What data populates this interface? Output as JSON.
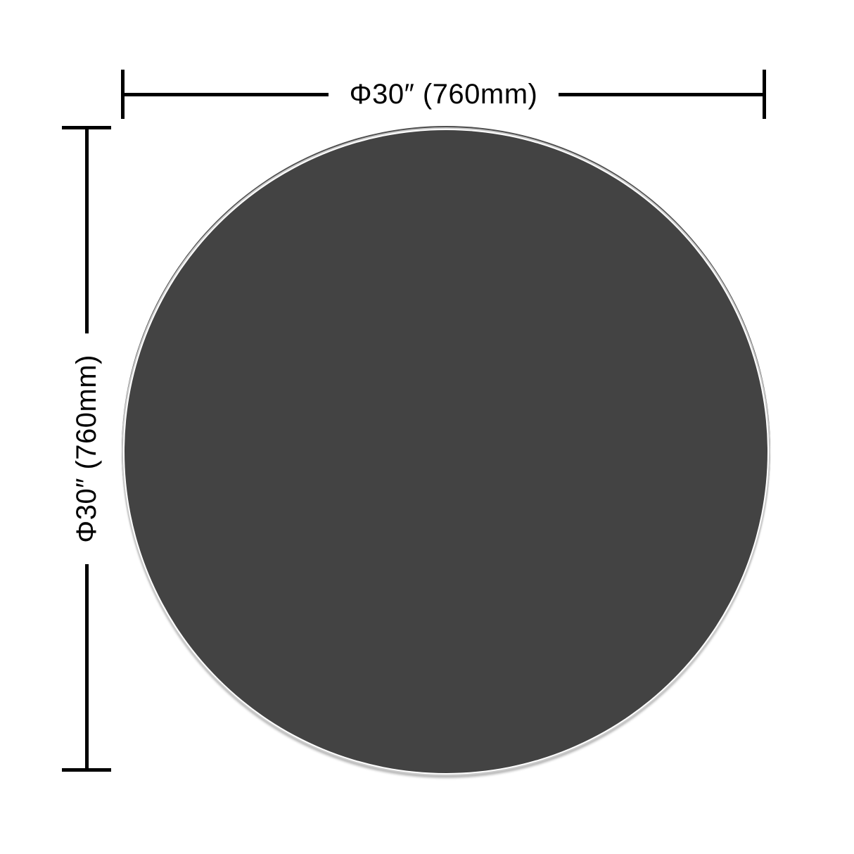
{
  "diagram": {
    "type": "product-dimension-diagram",
    "width_dimension": {
      "label": "Φ30″ (760mm)"
    },
    "height_dimension": {
      "label": "Φ30″ (760mm)"
    },
    "dimension_line_color": "#000000",
    "circle": {
      "shape": "circle",
      "fill_color": "#434343",
      "rim_color": "#cbcbcb",
      "top_edge_color": "#4e4e4e",
      "bottom_shadow_color": "#b8b8b8"
    }
  }
}
